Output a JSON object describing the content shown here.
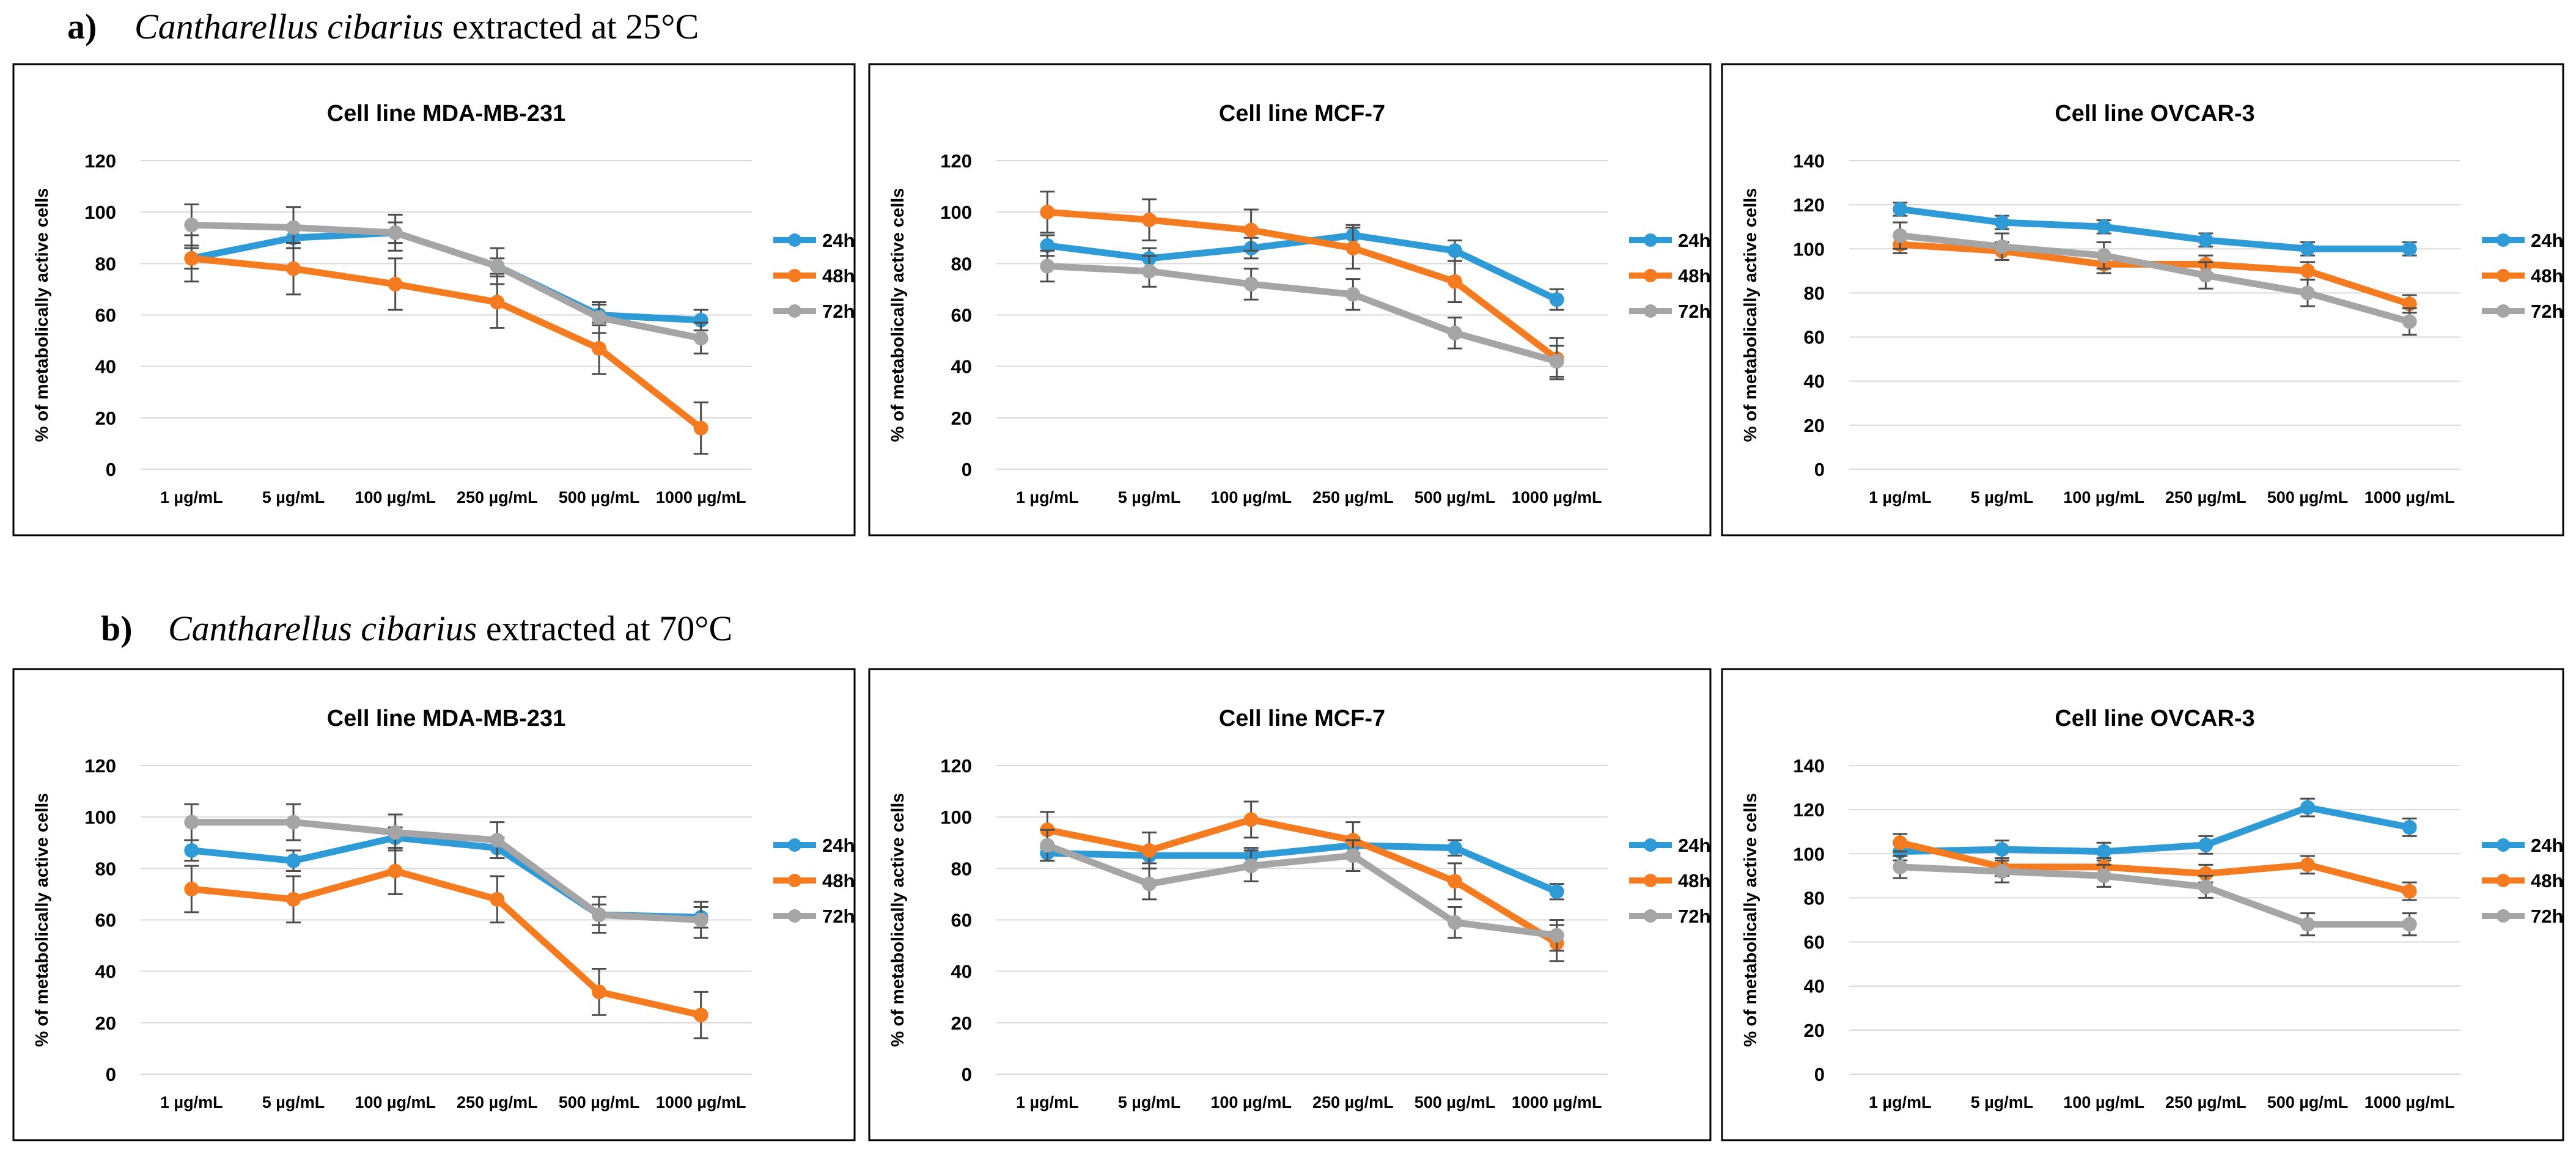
{
  "colors": {
    "h24": "#2E9BD6",
    "h48": "#F47B20",
    "h72": "#A5A5A5",
    "grid": "#D9D9D9",
    "frame": "#000000",
    "error": "#4D4D4D"
  },
  "sections": [
    {
      "label": "a)",
      "species": "Cantharellus cibarius",
      "suffix": " extracted at 25°C"
    },
    {
      "label": "b)",
      "species": "Cantharellus cibarius",
      "suffix": " extracted at 70°C"
    }
  ],
  "chart_data": [
    {
      "type": "line",
      "title": "Cell line MDA-MB-231",
      "ylabel": "% of metabolically active cells",
      "categories": [
        "1 µg/mL",
        "5 µg/mL",
        "100 µg/mL",
        "250 µg/mL",
        "500 µg/mL",
        "1000 µg/mL"
      ],
      "ylim": [
        0,
        120
      ],
      "yticks": [
        0,
        20,
        40,
        60,
        80,
        100,
        120
      ],
      "legend": "right",
      "series": [
        {
          "name": "24h",
          "values": [
            82,
            90,
            92,
            79,
            60,
            58
          ],
          "errors": [
            4,
            4,
            4,
            3,
            4,
            4
          ]
        },
        {
          "name": "48h",
          "values": [
            82,
            78,
            72,
            65,
            47,
            16
          ],
          "errors": [
            9,
            10,
            10,
            10,
            10,
            10
          ]
        },
        {
          "name": "72h",
          "values": [
            95,
            94,
            92,
            79,
            59,
            51
          ],
          "errors": [
            8,
            8,
            7,
            7,
            6,
            6
          ]
        }
      ]
    },
    {
      "type": "line",
      "title": "Cell line MCF-7",
      "ylabel": "% of metabolically active cells",
      "categories": [
        "1 µg/mL",
        "5 µg/mL",
        "100 µg/mL",
        "250 µg/mL",
        "500 µg/mL",
        "1000 µg/mL"
      ],
      "ylim": [
        0,
        120
      ],
      "yticks": [
        0,
        20,
        40,
        60,
        80,
        100,
        120
      ],
      "legend": "right",
      "series": [
        {
          "name": "24h",
          "values": [
            87,
            82,
            86,
            91,
            85,
            66
          ],
          "errors": [
            4,
            4,
            4,
            4,
            4,
            4
          ]
        },
        {
          "name": "48h",
          "values": [
            100,
            97,
            93,
            86,
            73,
            43
          ],
          "errors": [
            8,
            8,
            8,
            8,
            8,
            8
          ]
        },
        {
          "name": "72h",
          "values": [
            79,
            77,
            72,
            68,
            53,
            42
          ],
          "errors": [
            6,
            6,
            6,
            6,
            6,
            6
          ]
        }
      ]
    },
    {
      "type": "line",
      "title": "Cell line OVCAR-3",
      "ylabel": "% of metabolically active cells",
      "categories": [
        "1 µg/mL",
        "5 µg/mL",
        "100 µg/mL",
        "250 µg/mL",
        "500 µg/mL",
        "1000 µg/mL"
      ],
      "ylim": [
        0,
        140
      ],
      "yticks": [
        0,
        20,
        40,
        60,
        80,
        100,
        120,
        140
      ],
      "legend": "right",
      "series": [
        {
          "name": "24h",
          "values": [
            118,
            112,
            110,
            104,
            100,
            100
          ],
          "errors": [
            3,
            3,
            3,
            3,
            3,
            3
          ]
        },
        {
          "name": "48h",
          "values": [
            102,
            99,
            93,
            93,
            90,
            75
          ],
          "errors": [
            4,
            4,
            4,
            4,
            4,
            4
          ]
        },
        {
          "name": "72h",
          "values": [
            106,
            101,
            97,
            88,
            80,
            67
          ],
          "errors": [
            6,
            6,
            6,
            6,
            6,
            6
          ]
        }
      ]
    },
    {
      "type": "line",
      "title": "Cell line MDA-MB-231",
      "ylabel": "% of metabolically active cells",
      "categories": [
        "1 µg/mL",
        "5 µg/mL",
        "100 µg/mL",
        "250 µg/mL",
        "500 µg/mL",
        "1000 µg/mL"
      ],
      "ylim": [
        0,
        120
      ],
      "yticks": [
        0,
        20,
        40,
        60,
        80,
        100,
        120
      ],
      "legend": "right",
      "series": [
        {
          "name": "24h",
          "values": [
            87,
            83,
            92,
            88,
            62,
            61
          ],
          "errors": [
            4,
            4,
            4,
            4,
            4,
            4
          ]
        },
        {
          "name": "48h",
          "values": [
            72,
            68,
            79,
            68,
            32,
            23
          ],
          "errors": [
            9,
            9,
            9,
            9,
            9,
            9
          ]
        },
        {
          "name": "72h",
          "values": [
            98,
            98,
            94,
            91,
            62,
            60
          ],
          "errors": [
            7,
            7,
            7,
            7,
            7,
            7
          ]
        }
      ]
    },
    {
      "type": "line",
      "title": "Cell line MCF-7",
      "ylabel": "% of metabolically active cells",
      "categories": [
        "1 µg/mL",
        "5 µg/mL",
        "100 µg/mL",
        "250 µg/mL",
        "500 µg/mL",
        "1000 µg/mL"
      ],
      "ylim": [
        0,
        120
      ],
      "yticks": [
        0,
        20,
        40,
        60,
        80,
        100,
        120
      ],
      "legend": "right",
      "series": [
        {
          "name": "24h",
          "values": [
            86,
            85,
            85,
            89,
            88,
            71
          ],
          "errors": [
            3,
            3,
            3,
            3,
            3,
            3
          ]
        },
        {
          "name": "48h",
          "values": [
            95,
            87,
            99,
            91,
            75,
            51
          ],
          "errors": [
            7,
            7,
            7,
            7,
            7,
            7
          ]
        },
        {
          "name": "72h",
          "values": [
            89,
            74,
            81,
            85,
            59,
            54
          ],
          "errors": [
            6,
            6,
            6,
            6,
            6,
            6
          ]
        }
      ]
    },
    {
      "type": "line",
      "title": "Cell line OVCAR-3",
      "ylabel": "% of metabolically active cells",
      "categories": [
        "1 µg/mL",
        "5 µg/mL",
        "100 µg/mL",
        "250 µg/mL",
        "500 µg/mL",
        "1000 µg/mL"
      ],
      "ylim": [
        0,
        140
      ],
      "yticks": [
        0,
        20,
        40,
        60,
        80,
        100,
        120,
        140
      ],
      "legend": "right",
      "series": [
        {
          "name": "24h",
          "values": [
            101,
            102,
            101,
            104,
            121,
            112
          ],
          "errors": [
            4,
            4,
            4,
            4,
            4,
            4
          ]
        },
        {
          "name": "48h",
          "values": [
            105,
            94,
            94,
            91,
            95,
            83
          ],
          "errors": [
            4,
            4,
            4,
            4,
            4,
            4
          ]
        },
        {
          "name": "72h",
          "values": [
            94,
            92,
            90,
            85,
            68,
            68
          ],
          "errors": [
            5,
            5,
            5,
            5,
            5,
            5
          ]
        }
      ]
    }
  ]
}
